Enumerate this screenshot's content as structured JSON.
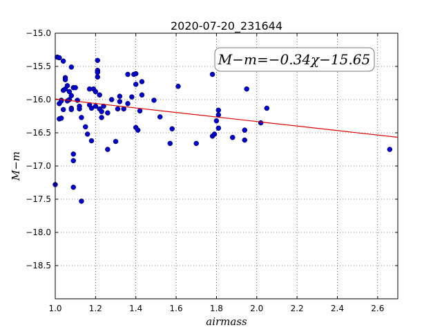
{
  "chart_data": {
    "type": "scatter",
    "title": "2020-07-20_231644",
    "xlabel": "airmass",
    "ylabel": "M−m",
    "xlim": [
      1.0,
      2.7
    ],
    "ylim": [
      -15.0,
      -19.0
    ],
    "y_inverted": true,
    "grid": true,
    "grid_style": "dotted",
    "x_ticks": [
      1.0,
      1.2,
      1.4,
      1.6,
      1.8,
      2.0,
      2.2,
      2.4,
      2.6
    ],
    "x_tick_labels": [
      "1.0",
      "1.2",
      "1.4",
      "1.6",
      "1.8",
      "2.0",
      "2.2",
      "2.4",
      "2.6"
    ],
    "y_ticks": [
      -15.0,
      -15.5,
      -16.0,
      -16.5,
      -17.0,
      -17.5,
      -18.0,
      -18.5
    ],
    "y_tick_labels": [
      "−15.0",
      "−15.5",
      "−16.0",
      "−16.5",
      "−17.0",
      "−17.5",
      "−18.0",
      "−18.5"
    ],
    "legend_box_text": "M−m=−0.34χ−15.65",
    "legend_placement": "top-right",
    "point_color": "#0000cc",
    "line_color": "#dd0000",
    "fit_line": {
      "slope": -0.34,
      "intercept": -15.65
    },
    "series": [
      {
        "values": [
          [
            1.0,
            -17.28
          ],
          [
            1.01,
            -15.36
          ],
          [
            1.02,
            -15.37
          ],
          [
            1.02,
            -16.06
          ],
          [
            1.02,
            -16.29
          ],
          [
            1.03,
            -16.28
          ],
          [
            1.03,
            -16.01
          ],
          [
            1.03,
            -16.02
          ],
          [
            1.04,
            -15.42
          ],
          [
            1.04,
            -15.86
          ],
          [
            1.04,
            -16.15
          ],
          [
            1.05,
            -15.67
          ],
          [
            1.05,
            -15.7
          ],
          [
            1.05,
            -15.84
          ],
          [
            1.06,
            -15.79
          ],
          [
            1.06,
            -16.02
          ],
          [
            1.07,
            -15.88
          ],
          [
            1.07,
            -16.0
          ],
          [
            1.08,
            -15.51
          ],
          [
            1.08,
            -15.94
          ],
          [
            1.08,
            -16.13
          ],
          [
            1.08,
            -16.15
          ],
          [
            1.09,
            -15.82
          ],
          [
            1.09,
            -17.32
          ],
          [
            1.09,
            -16.82
          ],
          [
            1.09,
            -16.92
          ],
          [
            1.1,
            -15.82
          ],
          [
            1.11,
            -16.01
          ],
          [
            1.12,
            -16.1
          ],
          [
            1.12,
            -16.14
          ],
          [
            1.13,
            -16.27
          ],
          [
            1.13,
            -17.53
          ],
          [
            1.15,
            -16.41
          ],
          [
            1.16,
            -16.52
          ],
          [
            1.17,
            -15.84
          ],
          [
            1.17,
            -16.08
          ],
          [
            1.18,
            -16.13
          ],
          [
            1.18,
            -16.62
          ],
          [
            1.19,
            -15.84
          ],
          [
            1.2,
            -15.88
          ],
          [
            1.2,
            -16.1
          ],
          [
            1.21,
            -15.41
          ],
          [
            1.21,
            -15.56
          ],
          [
            1.21,
            -15.59
          ],
          [
            1.21,
            -15.66
          ],
          [
            1.22,
            -15.93
          ],
          [
            1.22,
            -16.14
          ],
          [
            1.23,
            -16.27
          ],
          [
            1.23,
            -16.18
          ],
          [
            1.24,
            -16.1
          ],
          [
            1.26,
            -16.2
          ],
          [
            1.26,
            -16.75
          ],
          [
            1.28,
            -16.0
          ],
          [
            1.3,
            -16.63
          ],
          [
            1.31,
            -16.14
          ],
          [
            1.32,
            -15.95
          ],
          [
            1.32,
            -16.03
          ],
          [
            1.34,
            -16.14
          ],
          [
            1.36,
            -15.62
          ],
          [
            1.36,
            -16.06
          ],
          [
            1.38,
            -15.96
          ],
          [
            1.39,
            -15.62
          ],
          [
            1.4,
            -15.61
          ],
          [
            1.4,
            -15.77
          ],
          [
            1.4,
            -16.42
          ],
          [
            1.41,
            -16.46
          ],
          [
            1.42,
            -16.17
          ],
          [
            1.43,
            -15.73
          ],
          [
            1.43,
            -15.93
          ],
          [
            1.49,
            -16.01
          ],
          [
            1.52,
            -16.26
          ],
          [
            1.57,
            -16.66
          ],
          [
            1.58,
            -16.44
          ],
          [
            1.61,
            -15.8
          ],
          [
            1.7,
            -16.66
          ],
          [
            1.78,
            -15.62
          ],
          [
            1.78,
            -16.55
          ],
          [
            1.79,
            -16.52
          ],
          [
            1.8,
            -16.32
          ],
          [
            1.81,
            -16.16
          ],
          [
            1.81,
            -16.23
          ],
          [
            1.81,
            -16.43
          ],
          [
            1.88,
            -16.57
          ],
          [
            1.94,
            -16.61
          ],
          [
            1.94,
            -16.46
          ],
          [
            1.95,
            -15.84
          ],
          [
            2.02,
            -16.35
          ],
          [
            2.05,
            -16.13
          ],
          [
            2.66,
            -16.75
          ]
        ]
      }
    ]
  }
}
